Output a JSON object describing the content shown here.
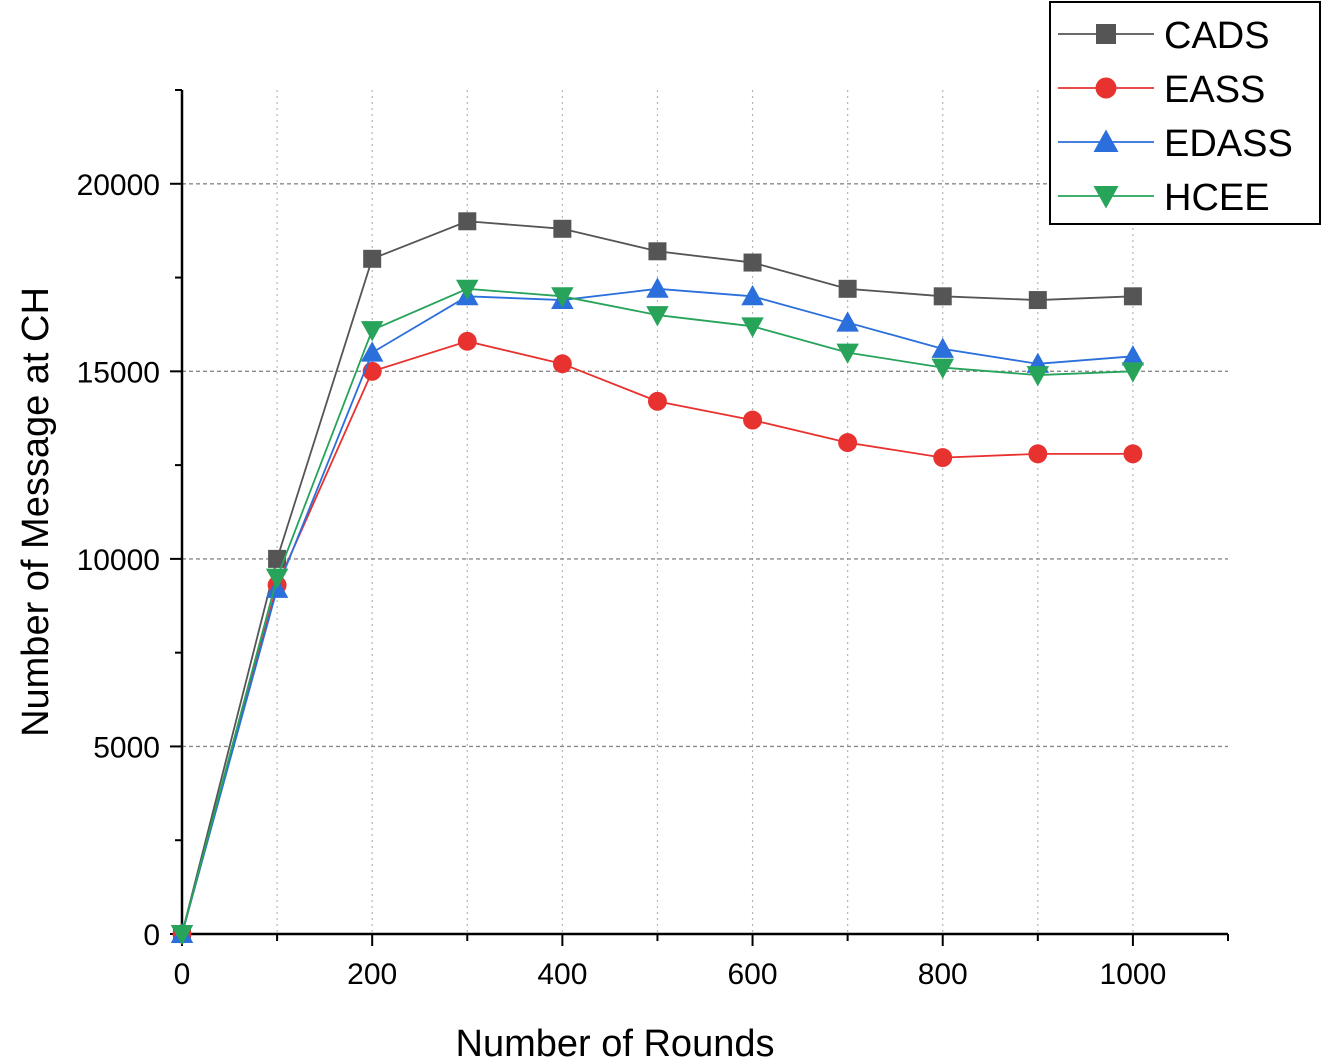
{
  "chart_data": {
    "type": "line",
    "title": "",
    "xlabel": "Number of Rounds",
    "ylabel": "Number of Message at CH",
    "xlim": [
      0,
      1100
    ],
    "ylim": [
      0,
      22500
    ],
    "x_ticks": [
      0,
      200,
      400,
      600,
      800,
      1000
    ],
    "y_ticks": [
      0,
      5000,
      10000,
      15000,
      20000
    ],
    "x_tick_labels": [
      "0",
      "200",
      "400",
      "600",
      "800",
      "1000"
    ],
    "y_tick_labels": [
      "0",
      "5000",
      "10000",
      "15000",
      "20000"
    ],
    "grid": true,
    "legend_position": "top-right",
    "x": [
      0,
      100,
      200,
      300,
      400,
      500,
      600,
      700,
      800,
      900,
      1000
    ],
    "series": [
      {
        "name": "CADS",
        "color": "#555555",
        "marker": "square",
        "values": [
          0,
          10000,
          18000,
          19000,
          18800,
          18200,
          17900,
          17200,
          17000,
          16900,
          17000
        ]
      },
      {
        "name": "EASS",
        "color": "#e8322f",
        "marker": "circle",
        "values": [
          0,
          9300,
          15000,
          15800,
          15200,
          14200,
          13700,
          13100,
          12700,
          12800,
          12800
        ]
      },
      {
        "name": "EDASS",
        "color": "#2a6fdb",
        "marker": "triangle-up",
        "values": [
          0,
          9200,
          15500,
          17000,
          16900,
          17200,
          17000,
          16300,
          15600,
          15200,
          15400
        ]
      },
      {
        "name": "HCEE",
        "color": "#27a35a",
        "marker": "triangle-down",
        "values": [
          0,
          9500,
          16100,
          17200,
          17000,
          16500,
          16200,
          15500,
          15100,
          14900,
          15000
        ]
      }
    ]
  }
}
